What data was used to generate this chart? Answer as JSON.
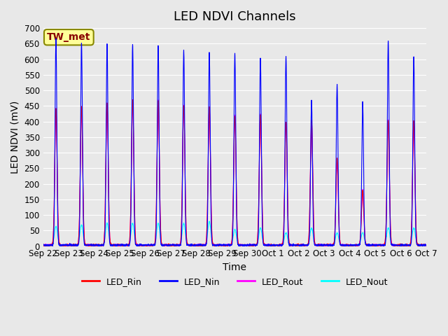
{
  "title": "LED NDVI Channels",
  "xlabel": "Time",
  "ylabel": "LED NDVI (mV)",
  "ylim": [
    0,
    700
  ],
  "yticks": [
    0,
    50,
    100,
    150,
    200,
    250,
    300,
    350,
    400,
    450,
    500,
    550,
    600,
    650,
    700
  ],
  "x_tick_labels": [
    "Sep 22",
    "Sep 23",
    "Sep 24",
    "Sep 25",
    "Sep 26",
    "Sep 27",
    "Sep 28",
    "Sep 29",
    "Sep 30",
    "Oct 1",
    "Oct 2",
    "Oct 3",
    "Oct 4",
    "Oct 5",
    "Oct 6",
    "Oct 7"
  ],
  "background_color": "#e8e8e8",
  "plot_bg_color": "#e8e8e8",
  "grid_color": "#ffffff",
  "colors": {
    "LED_Rin": "#ff0000",
    "LED_Nin": "#0000ff",
    "LED_Rout": "#ff00ff",
    "LED_Nout": "#00ffff"
  },
  "annotation_text": "TW_met",
  "annotation_bg": "#ffff99",
  "annotation_border": "#888800",
  "annotation_text_color": "#880000",
  "title_fontsize": 13,
  "axis_fontsize": 10,
  "tick_fontsize": 8.5,
  "legend_fontsize": 9,
  "num_days": 15,
  "peaks": {
    "LED_Nin": [
      665,
      650,
      645,
      645,
      640,
      625,
      620,
      615,
      600,
      605,
      465,
      515,
      460,
      655,
      605
    ],
    "LED_Rin": [
      440,
      445,
      455,
      465,
      465,
      450,
      445,
      415,
      420,
      395,
      400,
      280,
      175,
      400,
      400
    ],
    "LED_Rout": [
      440,
      445,
      455,
      465,
      465,
      450,
      445,
      415,
      420,
      395,
      400,
      265,
      175,
      400,
      395
    ],
    "LED_Nout": [
      60,
      65,
      70,
      70,
      70,
      70,
      75,
      50,
      55,
      40,
      55,
      40,
      40,
      55,
      55
    ]
  }
}
